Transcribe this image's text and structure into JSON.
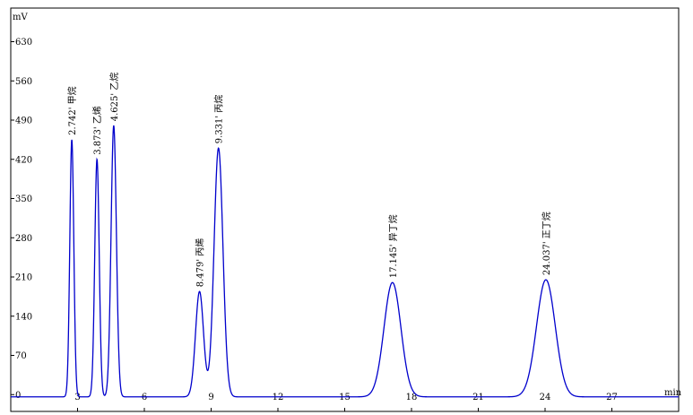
{
  "chart_data": {
    "type": "line",
    "title": "",
    "xlabel": "min",
    "ylabel": "mV",
    "xlim": [
      0,
      30
    ],
    "ylim": [
      -30,
      690
    ],
    "x_ticks": [
      3,
      6,
      9,
      12,
      15,
      18,
      21,
      24,
      27
    ],
    "y_ticks": [
      0,
      70,
      140,
      210,
      280,
      350,
      420,
      490,
      560,
      630
    ],
    "grid": false,
    "baseline": -4,
    "line_color": "#0000cc",
    "axis_color": "#000000",
    "peaks": [
      {
        "time": 2.742,
        "height": 455,
        "width": 0.09,
        "label": "2.742' 甲烷"
      },
      {
        "time": 3.873,
        "height": 420,
        "width": 0.1,
        "label": "3.873' 乙烯"
      },
      {
        "time": 4.625,
        "height": 480,
        "width": 0.12,
        "label": "4.625' 乙烷"
      },
      {
        "time": 8.479,
        "height": 184,
        "width": 0.18,
        "label": "8.479' 丙烯"
      },
      {
        "time": 9.331,
        "height": 440,
        "width": 0.2,
        "label": "9.331' 丙烷"
      },
      {
        "time": 17.145,
        "height": 200,
        "width": 0.38,
        "label": "17.145' 异丁烷"
      },
      {
        "time": 24.037,
        "height": 205,
        "width": 0.42,
        "label": "24.037' 正丁烷"
      }
    ]
  }
}
